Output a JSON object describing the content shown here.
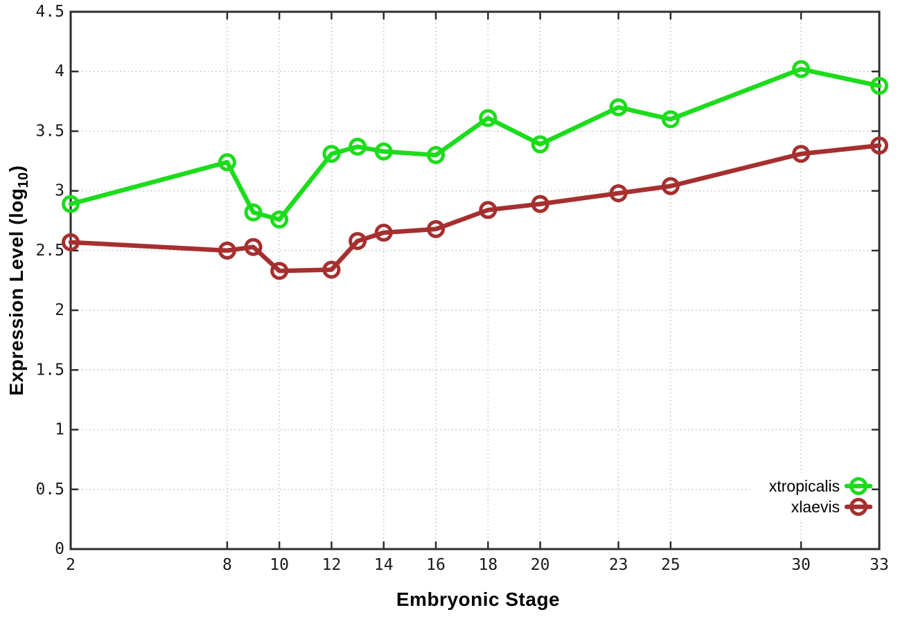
{
  "chart_data": {
    "type": "line",
    "title": "",
    "xlabel": "Embryonic Stage",
    "ylabel_main": "Expression Level (log",
    "ylabel_subscript": "10",
    "ylabel_end": ")",
    "x": [
      2,
      8,
      9,
      10,
      12,
      13,
      14,
      16,
      18,
      20,
      23,
      25,
      30,
      33
    ],
    "series": [
      {
        "name": "xtropicalis",
        "color": "#1cdc1c",
        "values": [
          2.89,
          3.24,
          2.82,
          2.76,
          3.31,
          3.37,
          3.33,
          3.3,
          3.61,
          3.39,
          3.7,
          3.6,
          4.02,
          3.88
        ]
      },
      {
        "name": "xlaevis",
        "color": "#a62f2f",
        "values": [
          2.57,
          2.5,
          2.53,
          2.33,
          2.34,
          2.58,
          2.65,
          2.68,
          2.84,
          2.89,
          2.98,
          3.04,
          3.31,
          3.38
        ]
      }
    ],
    "xticks": [
      2,
      8,
      10,
      12,
      14,
      16,
      18,
      20,
      23,
      25,
      30,
      33
    ],
    "xtick_labels": [
      "2",
      "8",
      "10",
      "12",
      "14",
      "16",
      "18",
      "20",
      "23",
      "25",
      "30",
      "33"
    ],
    "yticks": [
      0,
      0.5,
      1,
      1.5,
      2,
      2.5,
      3,
      3.5,
      4,
      4.5
    ],
    "ytick_labels": [
      "0",
      "0.5",
      "1",
      "1.5",
      "2",
      "2.5",
      "3",
      "3.5",
      "4",
      "4.5"
    ],
    "xlim": [
      2,
      33
    ],
    "ylim": [
      0,
      4.5
    ],
    "grid": true,
    "legend_position": "bottom-right",
    "legend": [
      "xtropicalis",
      "xlaevis"
    ]
  },
  "colors": {
    "background": "#ffffff",
    "border": "#2e2e2e",
    "grid": "#bbbbbb",
    "tick_text": "#1a1a1a",
    "title_text": "#000000",
    "series_green": "#1cdc1c",
    "series_red": "#a62f2f"
  }
}
